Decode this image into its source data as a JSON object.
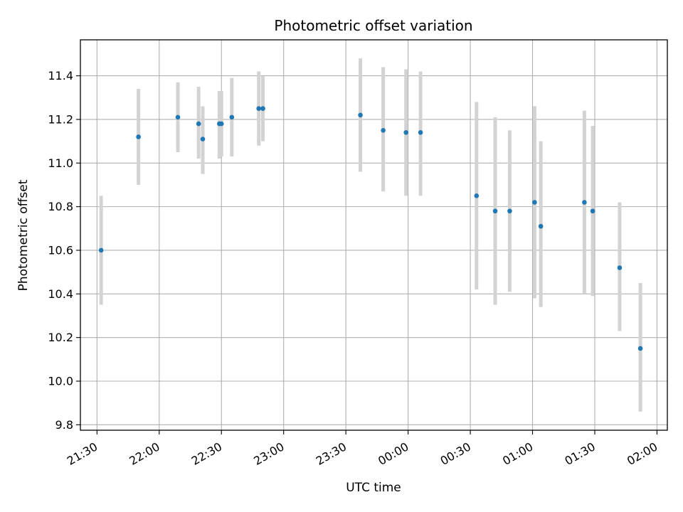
{
  "chart_data": {
    "type": "scatter",
    "title": "Photometric offset variation",
    "xlabel": "UTC time",
    "ylabel": "Photometric offset",
    "x_ticks": [
      "21:30",
      "22:00",
      "22:30",
      "23:00",
      "23:30",
      "00:00",
      "00:30",
      "01:00",
      "01:30",
      "02:00"
    ],
    "y_ticks": [
      "9.8",
      "10.0",
      "10.2",
      "10.4",
      "10.6",
      "10.8",
      "11.0",
      "11.2",
      "11.4"
    ],
    "xlim_minutes": [
      1282,
      1565
    ],
    "ylim": [
      9.775,
      11.565
    ],
    "grid": true,
    "colors": {
      "point": "#1f77b4",
      "errorbar": "#d3d3d3",
      "grid": "#b0b0b0"
    },
    "points": [
      {
        "t": "21:32",
        "y": 10.6,
        "ylow": 10.35,
        "yhigh": 10.85
      },
      {
        "t": "21:50",
        "y": 11.12,
        "ylow": 10.9,
        "yhigh": 11.34
      },
      {
        "t": "22:09",
        "y": 11.21,
        "ylow": 11.05,
        "yhigh": 11.37
      },
      {
        "t": "22:19",
        "y": 11.18,
        "ylow": 11.02,
        "yhigh": 11.35
      },
      {
        "t": "22:21",
        "y": 11.11,
        "ylow": 10.95,
        "yhigh": 11.26
      },
      {
        "t": "22:29",
        "y": 11.18,
        "ylow": 11.02,
        "yhigh": 11.33
      },
      {
        "t": "22:30",
        "y": 11.18,
        "ylow": 11.03,
        "yhigh": 11.33
      },
      {
        "t": "22:35",
        "y": 11.21,
        "ylow": 11.03,
        "yhigh": 11.39
      },
      {
        "t": "22:48",
        "y": 11.25,
        "ylow": 11.08,
        "yhigh": 11.42
      },
      {
        "t": "22:50",
        "y": 11.25,
        "ylow": 11.1,
        "yhigh": 11.4
      },
      {
        "t": "23:37",
        "y": 11.22,
        "ylow": 10.96,
        "yhigh": 11.48
      },
      {
        "t": "23:48",
        "y": 11.15,
        "ylow": 10.87,
        "yhigh": 11.44
      },
      {
        "t": "23:59",
        "y": 11.14,
        "ylow": 10.85,
        "yhigh": 11.43
      },
      {
        "t": "00:06",
        "y": 11.14,
        "ylow": 10.85,
        "yhigh": 11.42
      },
      {
        "t": "00:33",
        "y": 10.85,
        "ylow": 10.42,
        "yhigh": 11.28
      },
      {
        "t": "00:42",
        "y": 10.78,
        "ylow": 10.35,
        "yhigh": 11.21
      },
      {
        "t": "00:49",
        "y": 10.78,
        "ylow": 10.41,
        "yhigh": 11.15
      },
      {
        "t": "01:01",
        "y": 10.82,
        "ylow": 10.38,
        "yhigh": 11.26
      },
      {
        "t": "01:04",
        "y": 10.71,
        "ylow": 10.34,
        "yhigh": 11.1
      },
      {
        "t": "01:25",
        "y": 10.82,
        "ylow": 10.4,
        "yhigh": 11.24
      },
      {
        "t": "01:29",
        "y": 10.78,
        "ylow": 10.39,
        "yhigh": 11.17
      },
      {
        "t": "01:42",
        "y": 10.52,
        "ylow": 10.23,
        "yhigh": 10.82
      },
      {
        "t": "01:52",
        "y": 10.15,
        "ylow": 9.86,
        "yhigh": 10.45
      }
    ]
  }
}
